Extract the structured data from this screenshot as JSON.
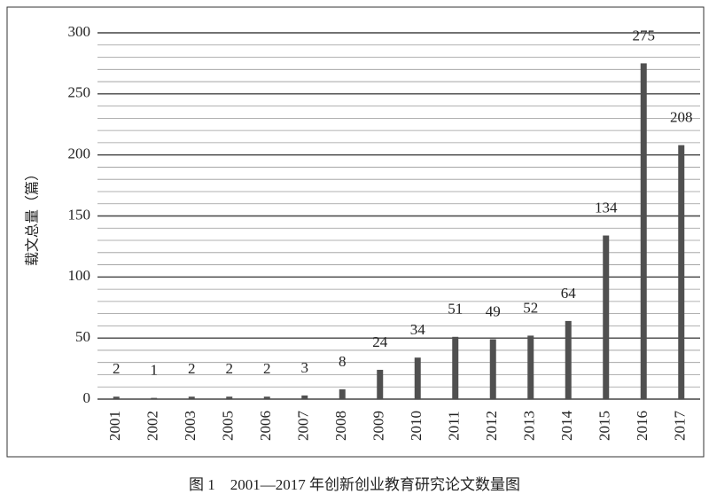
{
  "chart_data": {
    "type": "bar",
    "y_label": "载文总量（篇）",
    "caption": "图 1　2001—2017 年创新创业教育研究论文数量图",
    "categories": [
      "2001",
      "2002",
      "2003",
      "2005",
      "2006",
      "2007",
      "2008",
      "2009",
      "2010",
      "2011",
      "2012",
      "2013",
      "2014",
      "2015",
      "2016",
      "2017"
    ],
    "values": [
      2,
      1,
      2,
      2,
      2,
      3,
      8,
      24,
      34,
      51,
      49,
      52,
      64,
      134,
      275,
      208
    ],
    "color": "#505050",
    "ylim": [
      0,
      300
    ],
    "yticks": [
      0,
      50,
      100,
      150,
      200,
      250,
      300
    ],
    "minor_yticks": [
      10,
      20,
      30,
      40,
      60,
      70,
      80,
      90,
      110,
      120,
      130,
      140,
      160,
      170,
      180,
      190,
      210,
      220,
      230,
      240,
      260,
      270,
      280,
      290
    ],
    "grid": true
  }
}
